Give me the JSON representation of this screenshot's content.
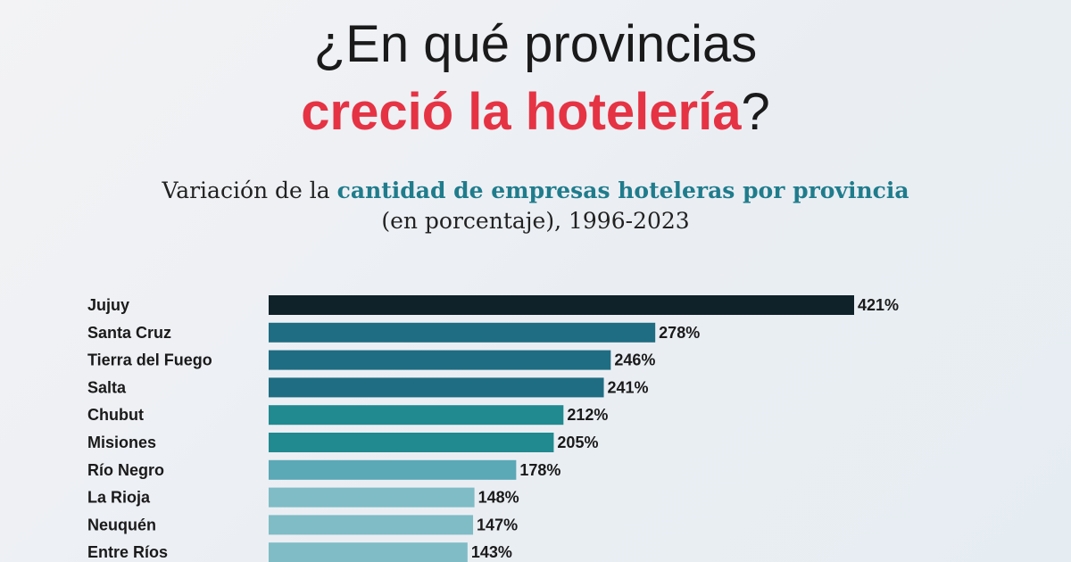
{
  "header": {
    "title_line1": "¿En qué provincias",
    "title_line2_accent": "creció la hotelería",
    "title_line2_end": "?",
    "subtitle_line1_start": "Variación de la ",
    "subtitle_line1_highlight": "cantidad de empresas hoteleras por provincia",
    "subtitle_line2": "(en porcentaje), 1996-2023"
  },
  "colors": {
    "accent": "#e53344",
    "highlight": "#1f7c8c"
  },
  "chart_data": {
    "type": "bar",
    "orientation": "horizontal",
    "categories": [
      "Jujuy",
      "Santa Cruz",
      "Tierra del Fuego",
      "Salta",
      "Chubut",
      "Misiones",
      "Río Negro",
      "La Rioja",
      "Neuquén",
      "Entre Ríos"
    ],
    "values": [
      421,
      278,
      246,
      241,
      212,
      205,
      178,
      148,
      147,
      143
    ],
    "value_labels": [
      "421%",
      "278%",
      "246%",
      "241%",
      "212%",
      "205%",
      "178%",
      "148%",
      "147%",
      "143%"
    ],
    "bar_colors": [
      "#0f2229",
      "#1f6d82",
      "#1f6d82",
      "#1f6d82",
      "#208a90",
      "#208a90",
      "#5ba8b6",
      "#7fbcc6",
      "#7fbcc6",
      "#7fbcc6"
    ],
    "xlim": [
      0,
      421
    ],
    "grid": false,
    "legend": "none"
  }
}
